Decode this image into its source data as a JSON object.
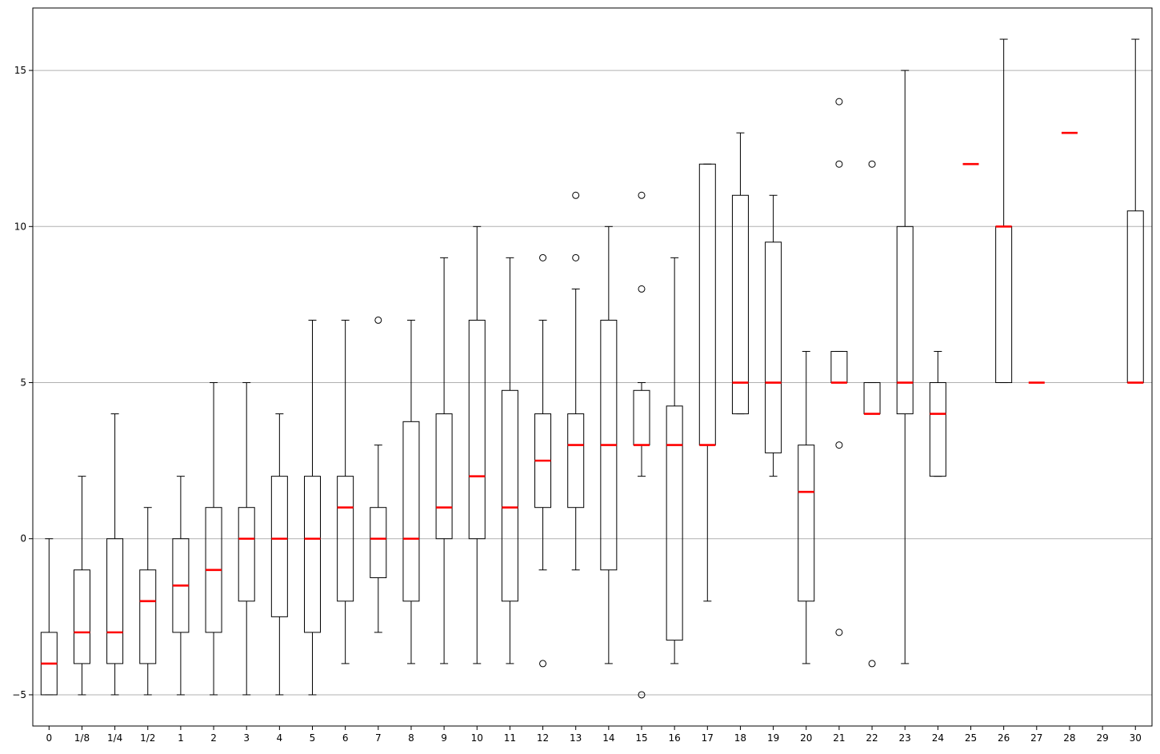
{
  "chart_data": {
    "type": "box",
    "title": "",
    "xlabel": "",
    "ylabel": "",
    "ylim": [
      -6,
      17
    ],
    "yticks": [
      -5,
      0,
      5,
      10,
      15
    ],
    "grid": "horizontal",
    "colors": {
      "box": "#000000",
      "median": "#ff0000",
      "grid": "#b0b0b0"
    },
    "categories": [
      "0",
      "1/8",
      "1/4",
      "1/2",
      "1",
      "2",
      "3",
      "4",
      "5",
      "6",
      "7",
      "8",
      "9",
      "10",
      "11",
      "12",
      "13",
      "14",
      "15",
      "16",
      "17",
      "18",
      "19",
      "20",
      "21",
      "22",
      "23",
      "24",
      "25",
      "26",
      "27",
      "28",
      "29",
      "30"
    ],
    "boxes": [
      {
        "category": "0",
        "whislo": -5,
        "q1": -5,
        "med": -4,
        "q3": -3,
        "whishi": 0,
        "fliers": []
      },
      {
        "category": "1/8",
        "whislo": -5,
        "q1": -4,
        "med": -3,
        "q3": -1,
        "whishi": 2,
        "fliers": []
      },
      {
        "category": "1/4",
        "whislo": -5,
        "q1": -4,
        "med": -3,
        "q3": 0,
        "whishi": 4,
        "fliers": []
      },
      {
        "category": "1/2",
        "whislo": -5,
        "q1": -4,
        "med": -2,
        "q3": -1,
        "whishi": 1,
        "fliers": []
      },
      {
        "category": "1",
        "whislo": -5,
        "q1": -3,
        "med": -1.5,
        "q3": 0,
        "whishi": 2,
        "fliers": []
      },
      {
        "category": "2",
        "whislo": -5,
        "q1": -3,
        "med": -1,
        "q3": 1,
        "whishi": 5,
        "fliers": []
      },
      {
        "category": "3",
        "whislo": -5,
        "q1": -2,
        "med": 0,
        "q3": 1,
        "whishi": 5,
        "fliers": []
      },
      {
        "category": "4",
        "whislo": -5,
        "q1": -2.5,
        "med": 0,
        "q3": 2,
        "whishi": 4,
        "fliers": []
      },
      {
        "category": "5",
        "whislo": -5,
        "q1": -3,
        "med": 0,
        "q3": 2,
        "whishi": 7,
        "fliers": []
      },
      {
        "category": "6",
        "whislo": -4,
        "q1": -2,
        "med": 1,
        "q3": 2,
        "whishi": 7,
        "fliers": []
      },
      {
        "category": "7",
        "whislo": -3,
        "q1": -1.25,
        "med": 0,
        "q3": 1,
        "whishi": 3,
        "fliers": [
          7
        ]
      },
      {
        "category": "8",
        "whislo": -4,
        "q1": -2,
        "med": 0,
        "q3": 3.75,
        "whishi": 7,
        "fliers": []
      },
      {
        "category": "9",
        "whislo": -4,
        "q1": 0,
        "med": 1,
        "q3": 4,
        "whishi": 9,
        "fliers": []
      },
      {
        "category": "10",
        "whislo": -4,
        "q1": 0,
        "med": 2,
        "q3": 7,
        "whishi": 10,
        "fliers": []
      },
      {
        "category": "11",
        "whislo": -4,
        "q1": -2,
        "med": 1,
        "q3": 4.75,
        "whishi": 9,
        "fliers": []
      },
      {
        "category": "12",
        "whislo": -1,
        "q1": 1,
        "med": 2.5,
        "q3": 4,
        "whishi": 7,
        "fliers": [
          9,
          -4
        ]
      },
      {
        "category": "13",
        "whislo": -1,
        "q1": 1,
        "med": 3,
        "q3": 4,
        "whishi": 8,
        "fliers": [
          9,
          11
        ]
      },
      {
        "category": "14",
        "whislo": -4,
        "q1": -1,
        "med": 3,
        "q3": 7,
        "whishi": 10,
        "fliers": []
      },
      {
        "category": "15",
        "whislo": 2,
        "q1": 3,
        "med": 3,
        "q3": 4.75,
        "whishi": 5,
        "fliers": [
          8,
          11,
          -5
        ]
      },
      {
        "category": "16",
        "whislo": -4,
        "q1": -3.25,
        "med": 3,
        "q3": 4.25,
        "whishi": 9,
        "fliers": []
      },
      {
        "category": "17",
        "whislo": -2,
        "q1": 3,
        "med": 3,
        "q3": 12,
        "whishi": 12,
        "fliers": []
      },
      {
        "category": "18",
        "whislo": 4,
        "q1": 4,
        "med": 5,
        "q3": 11,
        "whishi": 13,
        "fliers": []
      },
      {
        "category": "19",
        "whislo": 2,
        "q1": 2.75,
        "med": 5,
        "q3": 9.5,
        "whishi": 11,
        "fliers": []
      },
      {
        "category": "20",
        "whislo": -4,
        "q1": -2,
        "med": 1.5,
        "q3": 3,
        "whishi": 6,
        "fliers": []
      },
      {
        "category": "21",
        "whislo": 5,
        "q1": 5,
        "med": 5,
        "q3": 6,
        "whishi": 6,
        "fliers": [
          14,
          12,
          3,
          -3
        ]
      },
      {
        "category": "22",
        "whislo": 4,
        "q1": 4,
        "med": 4,
        "q3": 5,
        "whishi": 5,
        "fliers": [
          12,
          -4
        ]
      },
      {
        "category": "23",
        "whislo": -4,
        "q1": 4,
        "med": 5,
        "q3": 10,
        "whishi": 15,
        "fliers": []
      },
      {
        "category": "24",
        "whislo": 2,
        "q1": 2,
        "med": 4,
        "q3": 5,
        "whishi": 6,
        "fliers": []
      },
      {
        "category": "25",
        "whislo": 12,
        "q1": 12,
        "med": 12,
        "q3": 12,
        "whishi": 12,
        "fliers": []
      },
      {
        "category": "26",
        "whislo": 5,
        "q1": 5,
        "med": 10,
        "q3": 10,
        "whishi": 16,
        "fliers": []
      },
      {
        "category": "27",
        "whislo": 5,
        "q1": 5,
        "med": 5,
        "q3": 5,
        "whishi": 5,
        "fliers": []
      },
      {
        "category": "28",
        "whislo": 13,
        "q1": 13,
        "med": 13,
        "q3": 13,
        "whishi": 13,
        "fliers": []
      },
      {
        "category": "29",
        "empty": true
      },
      {
        "category": "30",
        "whislo": 5,
        "q1": 5,
        "med": 5,
        "q3": 10.5,
        "whishi": 16,
        "fliers": []
      }
    ]
  }
}
